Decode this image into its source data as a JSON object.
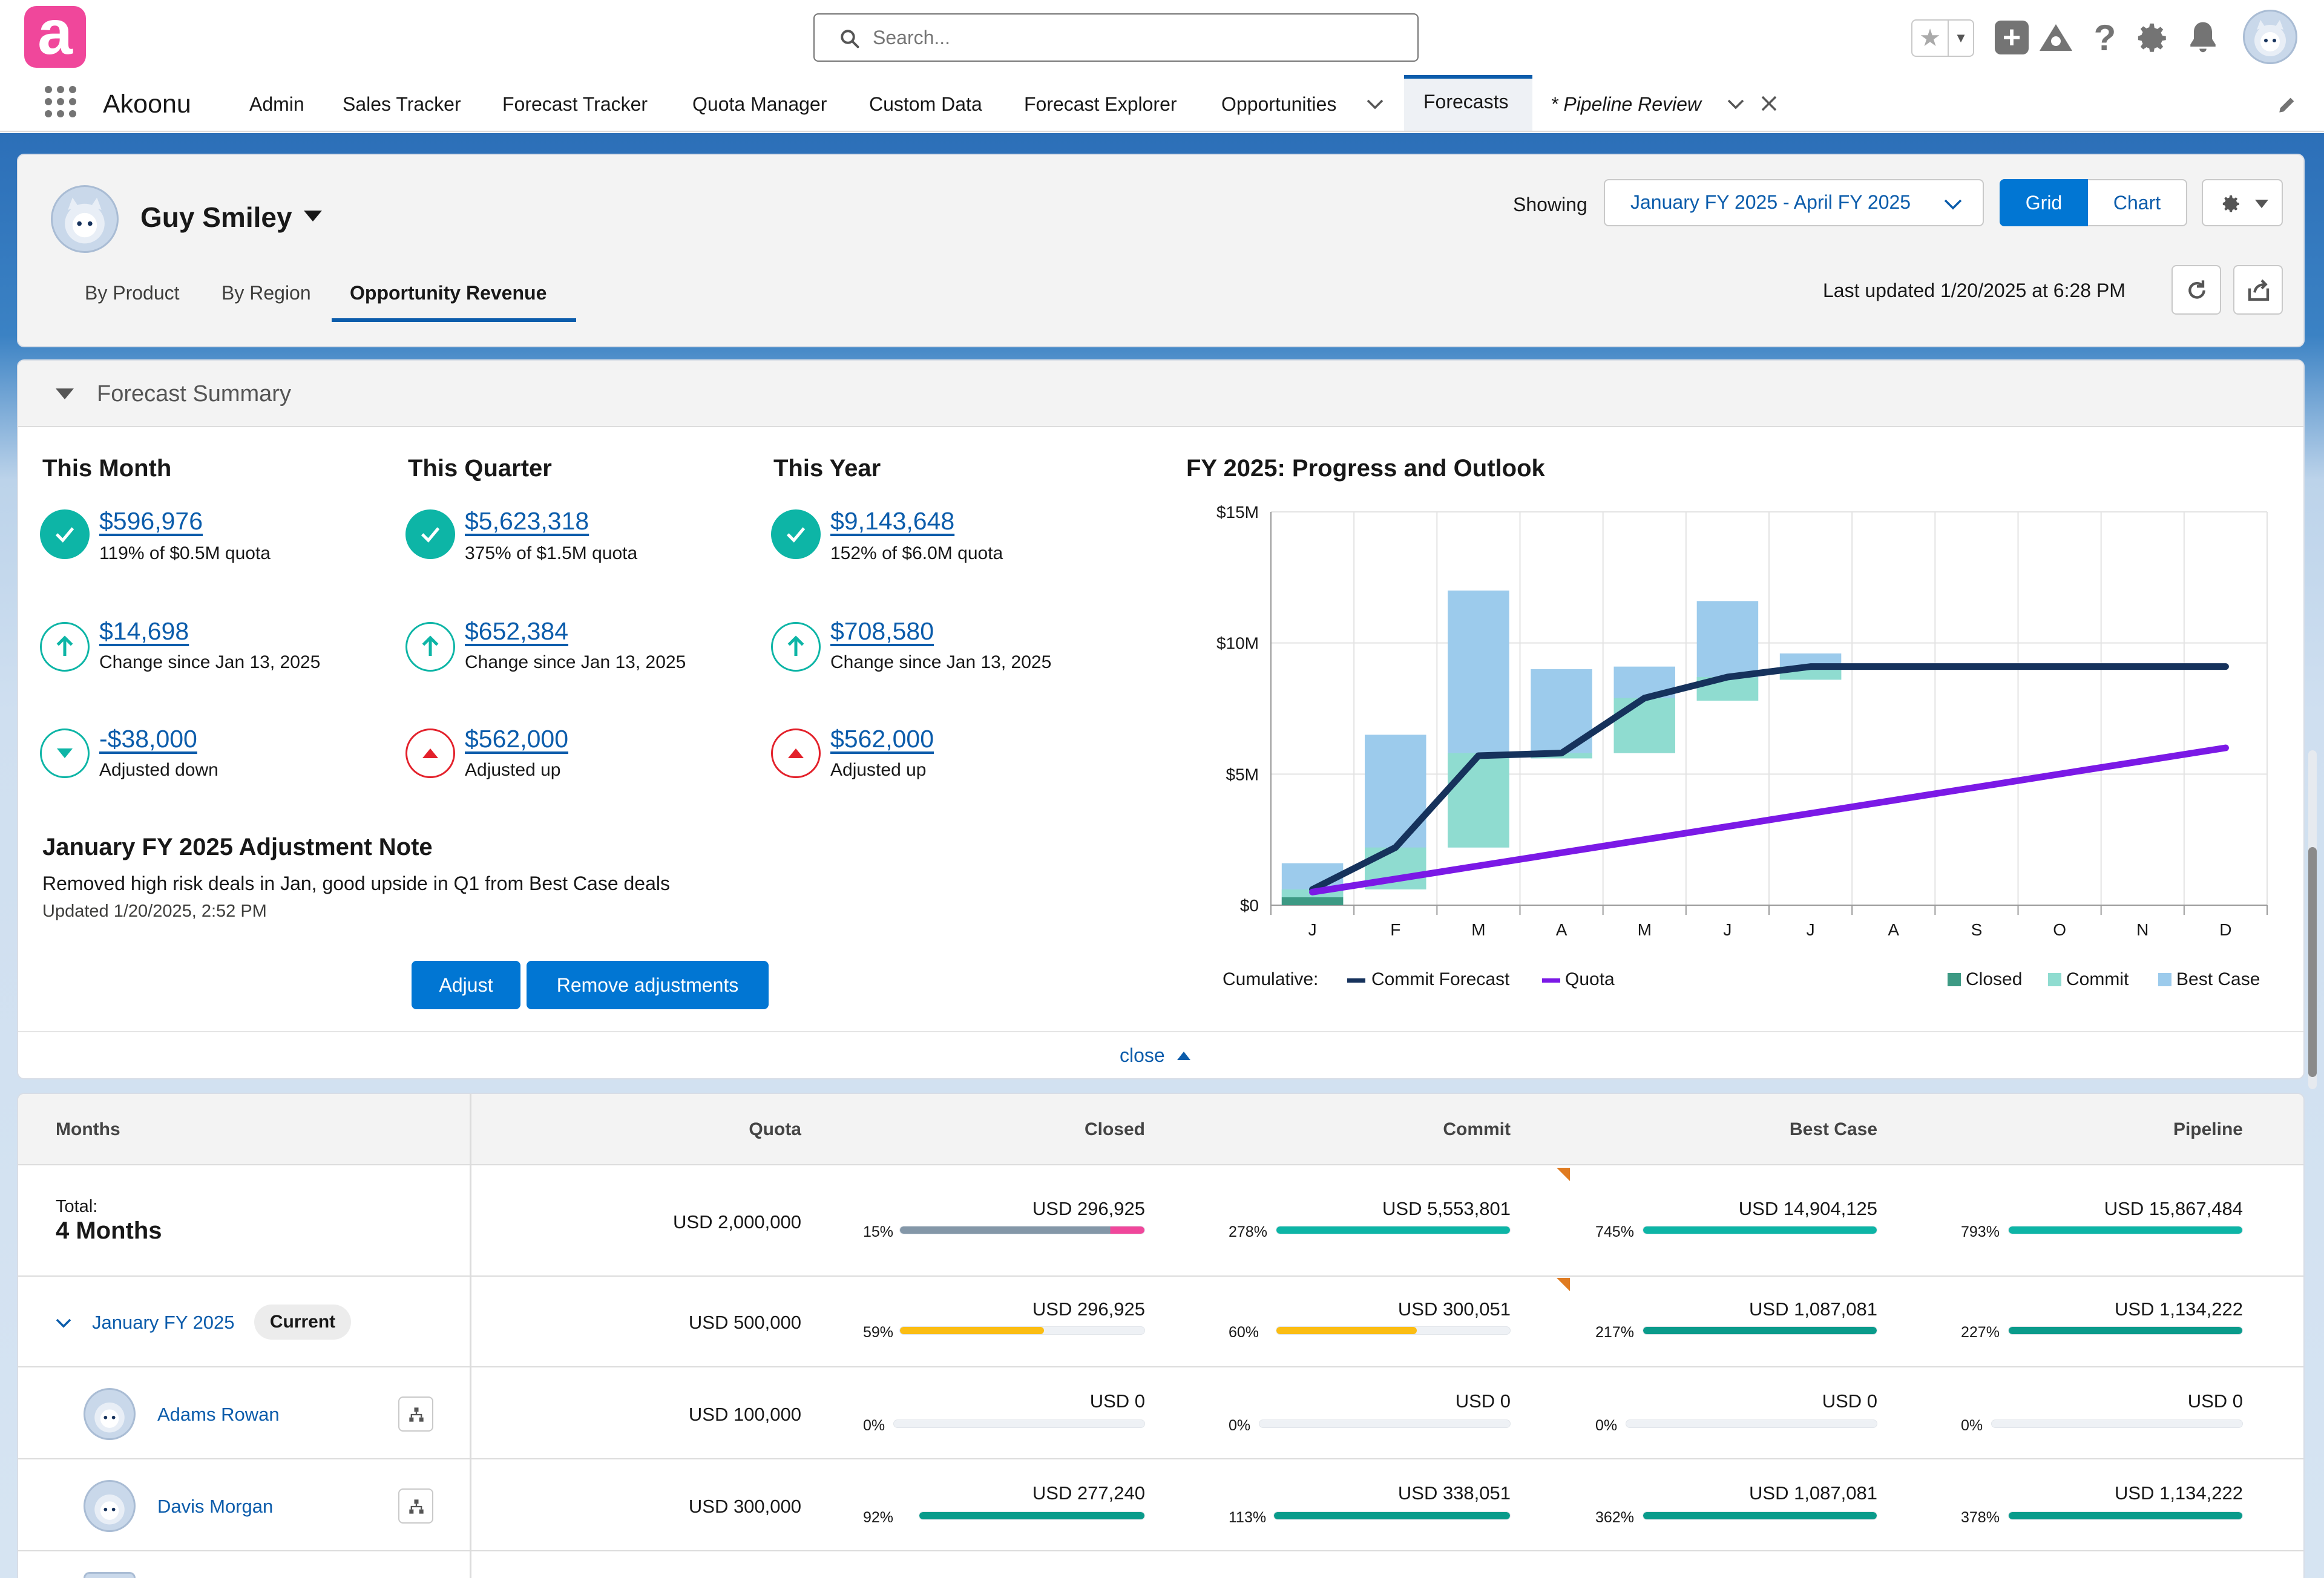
{
  "app": {
    "name": "Akoonu",
    "logo_letter": "a",
    "brand_color": "#f0479b"
  },
  "search": {
    "placeholder": "Search..."
  },
  "nav": {
    "items": [
      "Admin",
      "Sales Tracker",
      "Forecast Tracker",
      "Quota Manager",
      "Custom Data",
      "Forecast Explorer",
      "Opportunities"
    ],
    "active_tab": "Forecasts",
    "open_tab": "* Pipeline Review"
  },
  "header": {
    "user": "Guy Smiley",
    "showing_label": "Showing",
    "date_range": "January FY 2025 - April FY 2025",
    "view_grid": "Grid",
    "view_chart": "Chart",
    "tabs": [
      "By Product",
      "By Region",
      "Opportunity Revenue"
    ],
    "last_updated": "Last updated 1/20/2025 at 6:28 PM"
  },
  "summary": {
    "title": "Forecast Summary",
    "columns": [
      {
        "title": "This Month",
        "m1": {
          "value": "$596,976",
          "sub": "119% of $0.5M quota"
        },
        "m2": {
          "value": "$14,698",
          "sub": "Change since Jan 13, 2025"
        },
        "m3": {
          "value": "-$38,000",
          "sub": "Adjusted down",
          "dir": "down"
        }
      },
      {
        "title": "This Quarter",
        "m1": {
          "value": "$5,623,318",
          "sub": "375% of $1.5M quota"
        },
        "m2": {
          "value": "$652,384",
          "sub": "Change since Jan 13, 2025"
        },
        "m3": {
          "value": "$562,000",
          "sub": "Adjusted up",
          "dir": "up"
        }
      },
      {
        "title": "This Year",
        "m1": {
          "value": "$9,143,648",
          "sub": "152% of $6.0M quota"
        },
        "m2": {
          "value": "$708,580",
          "sub": "Change since Jan 13, 2025"
        },
        "m3": {
          "value": "$562,000",
          "sub": "Adjusted up",
          "dir": "up"
        }
      }
    ],
    "note_title": "January FY 2025 Adjustment Note",
    "note_text": "Removed high risk deals in Jan, good upside in Q1 from Best Case deals",
    "note_updated": "Updated 1/20/2025, 2:52 PM",
    "adjust_btn": "Adjust",
    "remove_btn": "Remove adjustments",
    "close_label": "close"
  },
  "chart_data": {
    "type": "bar",
    "title": "FY 2025: Progress and Outlook",
    "categories": [
      "J",
      "F",
      "M",
      "A",
      "M",
      "J",
      "J",
      "A",
      "S",
      "O",
      "N",
      "D"
    ],
    "ylim": [
      0,
      15
    ],
    "yticks": [
      "$0",
      "$5M",
      "$10M",
      "$15M"
    ],
    "ytick_values": [
      0,
      5,
      10,
      15
    ],
    "floating_bars": [
      {
        "month": "J",
        "best_case": [
          0,
          1.6
        ],
        "commit": [
          0,
          0.6
        ],
        "closed": [
          0,
          0.3
        ]
      },
      {
        "month": "F",
        "best_case": [
          0.6,
          6.5
        ],
        "commit": [
          0.6,
          2.2
        ]
      },
      {
        "month": "M",
        "best_case": [
          2.2,
          12.0
        ],
        "commit": [
          2.2,
          5.8
        ]
      },
      {
        "month": "A",
        "best_case": [
          5.6,
          9.0
        ],
        "commit": [
          5.6,
          5.8
        ]
      },
      {
        "month": "M",
        "best_case": [
          5.8,
          9.1
        ],
        "commit": [
          5.8,
          7.9
        ]
      },
      {
        "month": "J",
        "best_case": [
          7.8,
          11.6
        ],
        "commit": [
          7.8,
          8.7
        ]
      },
      {
        "month": "J",
        "best_case": [
          8.6,
          9.6
        ],
        "commit": [
          8.6,
          9.1
        ]
      }
    ],
    "series": [
      {
        "name": "Commit Forecast",
        "color": "#16325c",
        "values": [
          0.6,
          2.2,
          5.7,
          5.8,
          7.9,
          8.7,
          9.1,
          9.1,
          9.1,
          9.1,
          9.1,
          9.1
        ]
      },
      {
        "name": "Quota",
        "color": "#7b19e6",
        "values": [
          0.5,
          1.0,
          1.5,
          2.0,
          2.5,
          3.0,
          3.5,
          4.0,
          4.5,
          5.0,
          5.5,
          6.0
        ]
      }
    ],
    "legend_left_label": "Cumulative:",
    "legend": [
      {
        "name": "Commit Forecast",
        "kind": "line",
        "color": "#16325c"
      },
      {
        "name": "Quota",
        "kind": "line",
        "color": "#7b19e6"
      },
      {
        "name": "Closed",
        "kind": "box",
        "color": "#3d9a84"
      },
      {
        "name": "Commit",
        "kind": "box",
        "color": "#8fdcd0"
      },
      {
        "name": "Best Case",
        "kind": "box",
        "color": "#9ccbec"
      }
    ]
  },
  "table": {
    "headers": [
      "Months",
      "Quota",
      "Closed",
      "Commit",
      "Best Case",
      "Pipeline"
    ],
    "total": {
      "label": "Total:",
      "sub": "4 Months",
      "quota": "USD 2,000,000",
      "closed": {
        "v": "USD 296,925",
        "pct": "15%",
        "fill": 1.0,
        "color": "#8497a8",
        "tail": "#f0479b"
      },
      "commit": {
        "v": "USD 5,553,801",
        "pct": "278%",
        "fill": 1.0,
        "color": "#0db5a6"
      },
      "best": {
        "v": "USD 14,904,125",
        "pct": "745%",
        "fill": 1.0,
        "color": "#0db5a6"
      },
      "pipe": {
        "v": "USD 15,867,484",
        "pct": "793%",
        "fill": 1.0,
        "color": "#0db5a6"
      }
    },
    "rows": [
      {
        "name": "January FY 2025",
        "badge": "Current",
        "quota": "USD 500,000",
        "closed": {
          "v": "USD 296,925",
          "pct": "59%",
          "fill": 0.59,
          "color": "#fbbd13"
        },
        "commit": {
          "v": "USD 300,051",
          "pct": "60%",
          "fill": 0.6,
          "color": "#fbbd13"
        },
        "best": {
          "v": "USD 1,087,081",
          "pct": "217%",
          "fill": 1.0,
          "color": "#0a9b8b"
        },
        "pipe": {
          "v": "USD 1,134,222",
          "pct": "227%",
          "fill": 1.0,
          "color": "#0a9b8b"
        }
      },
      {
        "name": "Adams Rowan",
        "quota": "USD 100,000",
        "closed": {
          "v": "USD 0",
          "pct": "0%",
          "fill": 0,
          "color": "#0a9b8b"
        },
        "commit": {
          "v": "USD 0",
          "pct": "0%",
          "fill": 0,
          "color": "#0a9b8b"
        },
        "best": {
          "v": "USD 0",
          "pct": "0%",
          "fill": 0,
          "color": "#0a9b8b"
        },
        "pipe": {
          "v": "USD 0",
          "pct": "0%",
          "fill": 0,
          "color": "#0a9b8b"
        }
      },
      {
        "name": "Davis Morgan",
        "quota": "USD 300,000",
        "closed": {
          "v": "USD 277,240",
          "pct": "92%",
          "fill": 1.0,
          "color": "#0a9b8b"
        },
        "commit": {
          "v": "USD 338,051",
          "pct": "113%",
          "fill": 1.0,
          "color": "#0a9b8b"
        },
        "best": {
          "v": "USD 1,087,081",
          "pct": "362%",
          "fill": 1.0,
          "color": "#0a9b8b"
        },
        "pipe": {
          "v": "USD 1,134,222",
          "pct": "378%",
          "fill": 1.0,
          "color": "#0a9b8b"
        }
      }
    ]
  }
}
